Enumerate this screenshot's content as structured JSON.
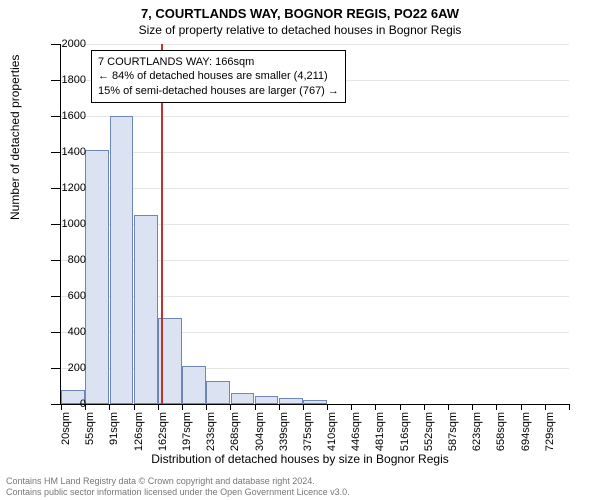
{
  "title_main": "7, COURTLANDS WAY, BOGNOR REGIS, PO22 6AW",
  "title_sub": "Size of property relative to detached houses in Bognor Regis",
  "ylabel": "Number of detached properties",
  "xlabel": "Distribution of detached houses by size in Bognor Regis",
  "footer_line1": "Contains HM Land Registry data © Crown copyright and database right 2024.",
  "footer_line2": "Contains public sector information licensed under the Open Government Licence v3.0.",
  "info_line1": "7 COURTLANDS WAY: 166sqm",
  "info_line2": "← 84% of detached houses are smaller (4,211)",
  "info_line3": "15% of semi-detached houses are larger (767) →",
  "chart": {
    "type": "histogram",
    "ylim": [
      0,
      2000
    ],
    "ytick_step": 200,
    "bar_fill": "#dbe3f2",
    "bar_border": "#6e86b8",
    "ref_color": "#c23030",
    "ref_x_value": 166,
    "background_color": "#ffffff",
    "grid_color": "#e5e5e5",
    "categories": [
      "20sqm",
      "55sqm",
      "91sqm",
      "126sqm",
      "162sqm",
      "197sqm",
      "233sqm",
      "268sqm",
      "304sqm",
      "339sqm",
      "375sqm",
      "410sqm",
      "446sqm",
      "481sqm",
      "516sqm",
      "552sqm",
      "587sqm",
      "623sqm",
      "658sqm",
      "694sqm",
      "729sqm"
    ],
    "values": [
      80,
      1410,
      1600,
      1050,
      480,
      210,
      130,
      60,
      45,
      35,
      20,
      0,
      0,
      0,
      0,
      0,
      0,
      0,
      0,
      0,
      0
    ],
    "label_fontsize": 11,
    "title_fontsize": 13
  }
}
